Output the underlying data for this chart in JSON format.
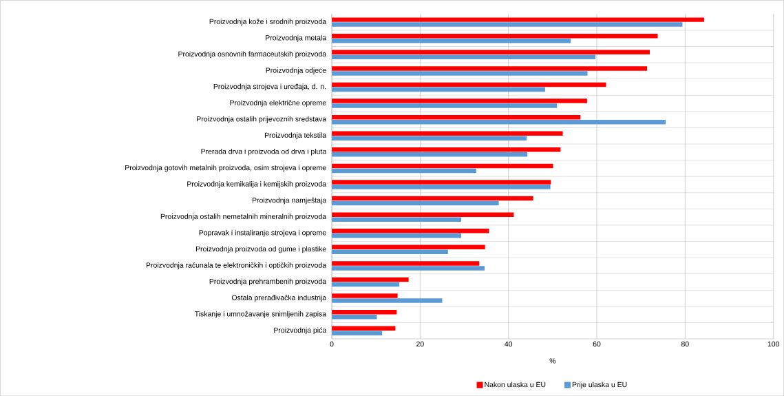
{
  "chart_data": {
    "type": "bar",
    "orientation": "horizontal",
    "xlabel": "%",
    "categories": [
      "Proizvodnja kože i srodnih proizvoda",
      "Proizvodnja metala",
      "Proizvodnja osnovnih farmaceutskih proizvoda",
      "Proizvodnja odjeće",
      "Proizvodnja strojeva i uređaja, d. n.",
      "Proizvodnja električne opreme",
      "Proizvodnja ostalih prijevoznih sredstava",
      "Proizvodnja tekstila",
      "Prerada drva i proizvoda od drva i pluta",
      "Proizvodnja gotovih metalnih proizvoda, osim strojeva i opreme",
      "Proizvodnja kemikalija i kemijskih proizvoda",
      "Proizvodnja namještaja",
      "Proizvodnja ostalih nemetalnih mineralnih proizvoda",
      "Popravak i instaliranje strojeva i opreme",
      "Proizvodnja proizvoda od gume i plastike",
      "Proizvodnja računala te elektroničkih i optičkih proizvoda",
      "Proizvodnja prehrambenih proizvoda",
      "Ostala prerađivačka industrija",
      "Tiskanje i umnožavanje snimljenih zapisa",
      "Proizvodnja pića"
    ],
    "series": [
      {
        "name": "Nakon ulaska u EU",
        "color": "#ff0000",
        "values": [
          84.3,
          73.8,
          72.0,
          71.4,
          62.1,
          57.8,
          56.3,
          52.3,
          51.8,
          50.1,
          49.6,
          45.6,
          41.2,
          35.6,
          34.7,
          33.4,
          17.4,
          14.9,
          14.7,
          14.4
        ]
      },
      {
        "name": "Prije ulaska u EU",
        "color": "#5b9bd5",
        "values": [
          79.4,
          54.1,
          59.7,
          57.9,
          48.3,
          51.0,
          75.6,
          44.1,
          44.3,
          32.7,
          49.5,
          37.8,
          29.3,
          29.3,
          26.3,
          34.6,
          15.3,
          25.0,
          10.2,
          11.4
        ]
      }
    ],
    "xlim": [
      0,
      100
    ],
    "xticks": [
      0,
      20,
      40,
      60,
      80,
      100
    ],
    "grid": true,
    "legend": "bottom"
  }
}
